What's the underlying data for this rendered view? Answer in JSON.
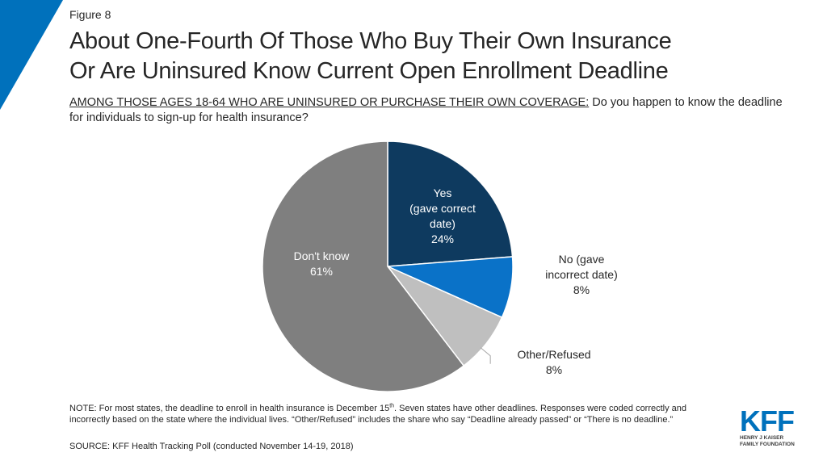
{
  "figure_label": "Figure 8",
  "title_line1": "About One-Fourth Of Those Who Buy Their Own Insurance",
  "title_line2": "Or Are Uninsured Know Current Open Enrollment Deadline",
  "subtitle_lead": "AMONG THOSE AGES 18-64 WHO ARE UNINSURED OR PURCHASE THEIR OWN COVERAGE:",
  "subtitle_question": "Do you happen to know the deadline for individuals to sign-up for health insurance?",
  "colors": {
    "accent": "#0071bc",
    "yes": "#0e3a5f",
    "no": "#0a72c8",
    "other": "#bfbfbf",
    "dont_know": "#7f7f7f"
  },
  "chart_data": {
    "type": "pie",
    "start": "12 o'clock, clockwise",
    "slices": [
      {
        "label_lines": [
          "Yes",
          "(gave correct",
          "date)",
          "24%"
        ],
        "value": 24
      },
      {
        "label_lines": [
          "No (gave",
          "incorrect date)",
          "8%"
        ],
        "value": 8
      },
      {
        "label_lines": [
          "Other/Refused",
          "8%"
        ],
        "value": 8
      },
      {
        "label_lines": [
          "Don't know",
          "61%"
        ],
        "value": 61
      }
    ]
  },
  "note": {
    "p1": "NOTE: For most states, the deadline to enroll in health insurance is December 15",
    "sup": "th",
    "p2": ". Seven states have other deadlines. Responses were coded correctly and incorrectly based on the state where the individual lives. “Other/Refused” includes the share who say “Deadline already passed” or “There is no deadline.”"
  },
  "source": "SOURCE: KFF Health Tracking Poll (conducted November 14-19, 2018)",
  "logo": {
    "mark": "KFF",
    "line1": "HENRY J KAISER",
    "line2": "FAMILY FOUNDATION"
  }
}
